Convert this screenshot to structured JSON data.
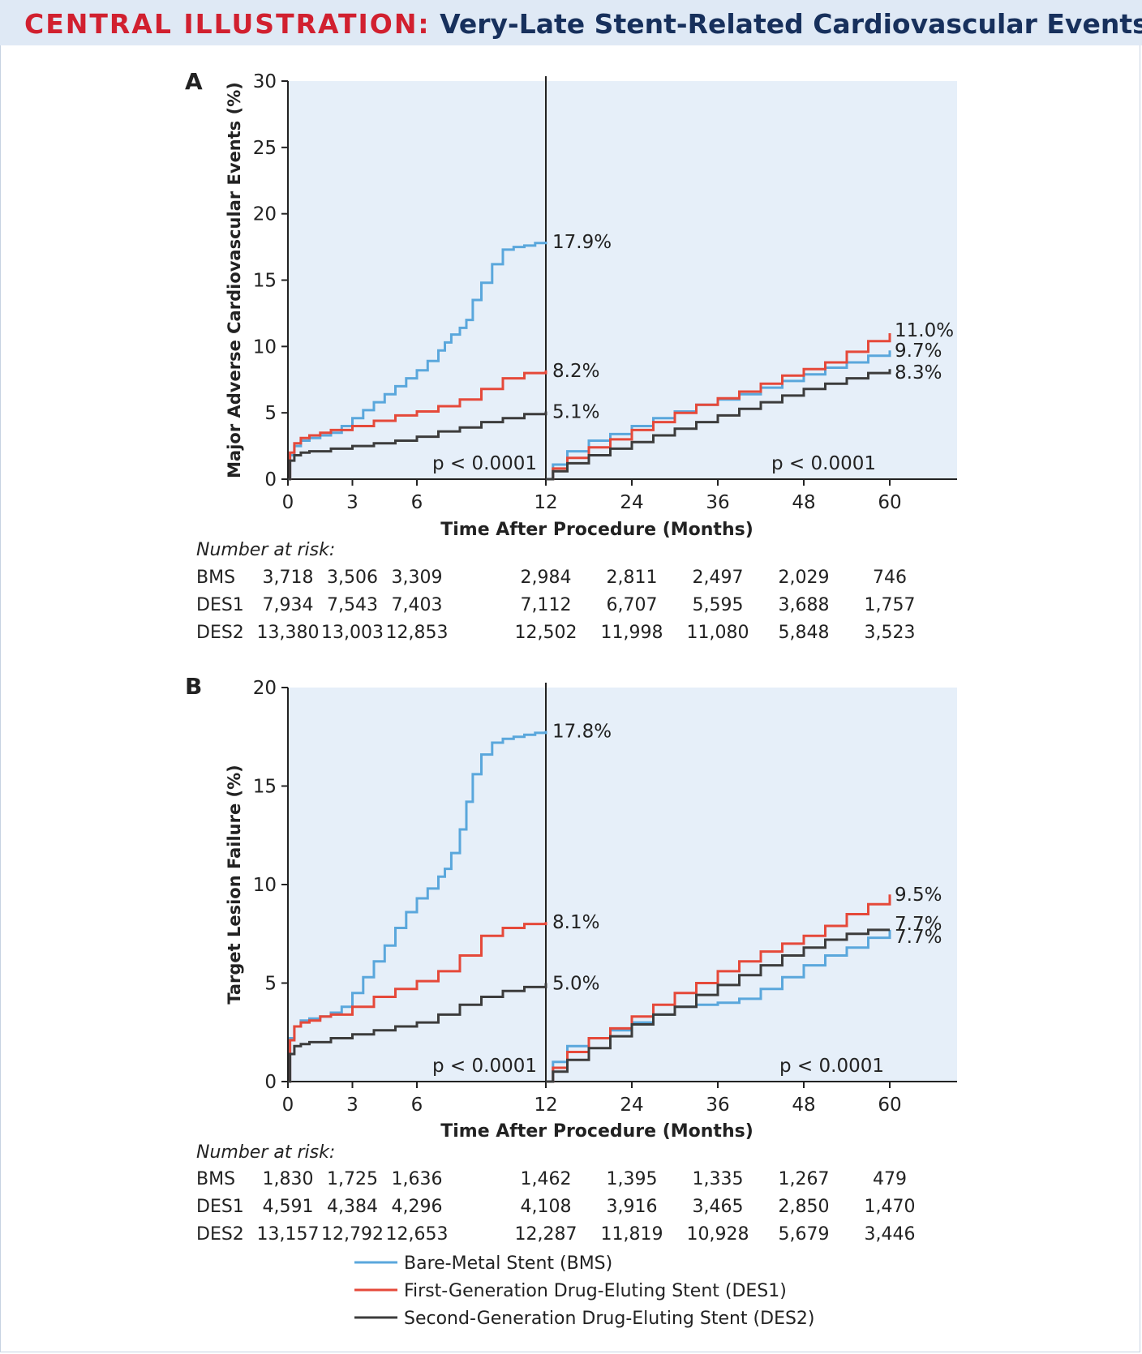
{
  "header": {
    "label": "CENTRAL ILLUSTRATION:",
    "title": "Very-Late Stent-Related Cardiovascular Events"
  },
  "colors": {
    "bms": "#5aa7dc",
    "des1": "#e5493a",
    "des2": "#3c3c3c",
    "plot_bg": "#e6eff9",
    "header_bg": "#dfe9f5"
  },
  "chart_data": [
    {
      "type": "line",
      "panel": "A",
      "ylabel": "Major Adverse Cardiovascular Events (%)",
      "xlabel": "Time After Procedure (Months)",
      "ylim": [
        0,
        30
      ],
      "yticks": [
        "0",
        "5",
        "10",
        "15",
        "20",
        "25",
        "30"
      ],
      "xticks": [
        "0",
        "3",
        "6",
        "12",
        "24",
        "36",
        "48",
        "60"
      ],
      "p_values": [
        "p < 0.0001",
        "p < 0.0001"
      ],
      "series": [
        {
          "name": "BMS",
          "color": "#5aa7dc",
          "first_year": {
            "x": [
              0,
              0.1,
              0.3,
              0.6,
              1,
              1.5,
              2,
              2.5,
              3,
              3.5,
              4,
              4.5,
              5,
              5.5,
              6,
              6.5,
              7,
              7.3,
              7.6,
              8,
              8.3,
              8.6,
              9,
              9.5,
              10,
              10.5,
              11,
              11.5,
              12
            ],
            "y": [
              0,
              1.8,
              2.5,
              2.9,
              3.1,
              3.3,
              3.5,
              4.0,
              4.6,
              5.2,
              5.8,
              6.4,
              7.0,
              7.6,
              8.2,
              8.9,
              9.7,
              10.3,
              10.9,
              11.4,
              12.0,
              13.5,
              14.8,
              16.2,
              17.3,
              17.5,
              17.6,
              17.8,
              17.9
            ],
            "end_label": "17.9%"
          },
          "after": {
            "x": [
              12,
              13,
              15,
              18,
              21,
              24,
              27,
              30,
              33,
              36,
              39,
              42,
              45,
              48,
              51,
              54,
              57,
              60
            ],
            "y": [
              0,
              1.1,
              2.1,
              2.9,
              3.4,
              4.0,
              4.6,
              5.1,
              5.6,
              6.0,
              6.4,
              6.9,
              7.4,
              7.9,
              8.4,
              8.8,
              9.3,
              9.7
            ],
            "end_label": "9.7%"
          }
        },
        {
          "name": "DES1",
          "color": "#e5493a",
          "first_year": {
            "x": [
              0,
              0.1,
              0.3,
              0.6,
              1,
              1.5,
              2,
              3,
              4,
              5,
              6,
              7,
              8,
              9,
              10,
              11,
              12
            ],
            "y": [
              0,
              2.0,
              2.7,
              3.1,
              3.3,
              3.5,
              3.7,
              4.0,
              4.4,
              4.8,
              5.1,
              5.5,
              6.0,
              6.8,
              7.6,
              8.0,
              8.2
            ],
            "end_label": "8.2%"
          },
          "after": {
            "x": [
              12,
              13,
              15,
              18,
              21,
              24,
              27,
              30,
              33,
              36,
              39,
              42,
              45,
              48,
              51,
              54,
              57,
              60
            ],
            "y": [
              0,
              0.8,
              1.6,
              2.4,
              3.0,
              3.7,
              4.3,
              5.0,
              5.6,
              6.1,
              6.6,
              7.2,
              7.8,
              8.3,
              8.8,
              9.6,
              10.4,
              11.0
            ],
            "end_label": "11.0%"
          }
        },
        {
          "name": "DES2",
          "color": "#3c3c3c",
          "first_year": {
            "x": [
              0,
              0.1,
              0.3,
              0.6,
              1,
              2,
              3,
              4,
              5,
              6,
              7,
              8,
              9,
              10,
              11,
              12
            ],
            "y": [
              0,
              1.4,
              1.8,
              2.0,
              2.1,
              2.3,
              2.5,
              2.7,
              2.9,
              3.2,
              3.6,
              3.9,
              4.3,
              4.6,
              4.9,
              5.1
            ],
            "end_label": "5.1%"
          },
          "after": {
            "x": [
              12,
              13,
              15,
              18,
              21,
              24,
              27,
              30,
              33,
              36,
              39,
              42,
              45,
              48,
              51,
              54,
              57,
              60
            ],
            "y": [
              0,
              0.6,
              1.2,
              1.8,
              2.3,
              2.8,
              3.3,
              3.8,
              4.3,
              4.8,
              5.3,
              5.8,
              6.3,
              6.8,
              7.2,
              7.6,
              8.0,
              8.3
            ],
            "end_label": "8.3%"
          }
        }
      ],
      "at_risk": {
        "label": "Number at risk:",
        "rows": [
          {
            "name": "BMS",
            "values": [
              "3,718",
              "3,506",
              "3,309",
              "2,984",
              "2,811",
              "2,497",
              "2,029",
              "746"
            ]
          },
          {
            "name": "DES1",
            "values": [
              "7,934",
              "7,543",
              "7,403",
              "7,112",
              "6,707",
              "5,595",
              "3,688",
              "1,757"
            ]
          },
          {
            "name": "DES2",
            "values": [
              "13,380",
              "13,003",
              "12,853",
              "12,502",
              "11,998",
              "11,080",
              "5,848",
              "3,523"
            ]
          }
        ]
      }
    },
    {
      "type": "line",
      "panel": "B",
      "ylabel": "Target Lesion Failure (%)",
      "xlabel": "Time After Procedure (Months)",
      "ylim": [
        0,
        20
      ],
      "yticks": [
        "0",
        "5",
        "10",
        "15",
        "20"
      ],
      "xticks": [
        "0",
        "3",
        "6",
        "12",
        "24",
        "36",
        "48",
        "60"
      ],
      "p_values": [
        "p < 0.0001",
        "p < 0.0001"
      ],
      "series": [
        {
          "name": "BMS",
          "color": "#5aa7dc",
          "first_year": {
            "x": [
              0,
              0.1,
              0.3,
              0.6,
              1,
              1.5,
              2,
              2.5,
              3,
              3.5,
              4,
              4.5,
              5,
              5.5,
              6,
              6.5,
              7,
              7.3,
              7.6,
              8,
              8.3,
              8.6,
              9,
              9.5,
              10,
              10.5,
              11,
              11.5,
              12
            ],
            "y": [
              0,
              2.2,
              2.8,
              3.1,
              3.2,
              3.3,
              3.5,
              3.8,
              4.5,
              5.3,
              6.1,
              6.9,
              7.8,
              8.6,
              9.3,
              9.8,
              10.4,
              10.8,
              11.6,
              12.8,
              14.2,
              15.6,
              16.6,
              17.2,
              17.4,
              17.5,
              17.6,
              17.7,
              17.8
            ],
            "end_label": "17.8%"
          },
          "after": {
            "x": [
              12,
              13,
              15,
              18,
              21,
              24,
              27,
              30,
              33,
              36,
              39,
              42,
              45,
              48,
              51,
              54,
              57,
              60
            ],
            "y": [
              0,
              1.0,
              1.8,
              2.2,
              2.6,
              3.0,
              3.4,
              3.8,
              3.9,
              4.0,
              4.2,
              4.7,
              5.3,
              5.9,
              6.4,
              6.8,
              7.3,
              7.7
            ],
            "end_label": "7.7%"
          }
        },
        {
          "name": "DES1",
          "color": "#e5493a",
          "first_year": {
            "x": [
              0,
              0.1,
              0.3,
              0.6,
              1,
              1.5,
              2,
              3,
              4,
              5,
              6,
              7,
              8,
              9,
              10,
              11,
              12
            ],
            "y": [
              0,
              2.1,
              2.8,
              3.0,
              3.1,
              3.3,
              3.4,
              3.8,
              4.3,
              4.7,
              5.1,
              5.6,
              6.4,
              7.4,
              7.8,
              8.0,
              8.1
            ],
            "end_label": "8.1%"
          },
          "after": {
            "x": [
              12,
              13,
              15,
              18,
              21,
              24,
              27,
              30,
              33,
              36,
              39,
              42,
              45,
              48,
              51,
              54,
              57,
              60
            ],
            "y": [
              0,
              0.7,
              1.5,
              2.2,
              2.7,
              3.3,
              3.9,
              4.5,
              5.0,
              5.6,
              6.1,
              6.6,
              7.0,
              7.4,
              7.9,
              8.5,
              9.0,
              9.5
            ],
            "end_label": "9.5%"
          }
        },
        {
          "name": "DES2",
          "color": "#3c3c3c",
          "first_year": {
            "x": [
              0,
              0.1,
              0.3,
              0.6,
              1,
              2,
              3,
              4,
              5,
              6,
              7,
              8,
              9,
              10,
              11,
              12
            ],
            "y": [
              0,
              1.4,
              1.8,
              1.9,
              2.0,
              2.2,
              2.4,
              2.6,
              2.8,
              3.0,
              3.4,
              3.9,
              4.3,
              4.6,
              4.8,
              5.0
            ],
            "end_label": "5.0%"
          },
          "after": {
            "x": [
              12,
              13,
              15,
              18,
              21,
              24,
              27,
              30,
              33,
              36,
              39,
              42,
              45,
              48,
              51,
              54,
              57,
              60
            ],
            "y": [
              0,
              0.5,
              1.1,
              1.7,
              2.3,
              2.9,
              3.4,
              3.8,
              4.4,
              4.9,
              5.4,
              5.9,
              6.4,
              6.8,
              7.2,
              7.5,
              7.7,
              7.7
            ],
            "end_label": "7.7%"
          }
        }
      ],
      "at_risk": {
        "label": "Number at risk:",
        "rows": [
          {
            "name": "BMS",
            "values": [
              "1,830",
              "1,725",
              "1,636",
              "1,462",
              "1,395",
              "1,335",
              "1,267",
              "479"
            ]
          },
          {
            "name": "DES1",
            "values": [
              "4,591",
              "4,384",
              "4,296",
              "4,108",
              "3,916",
              "3,465",
              "2,850",
              "1,470"
            ]
          },
          {
            "name": "DES2",
            "values": [
              "13,157",
              "12,792",
              "12,653",
              "12,287",
              "11,819",
              "10,928",
              "5,679",
              "3,446"
            ]
          }
        ]
      }
    }
  ],
  "legend": [
    {
      "label": "Bare-Metal Stent (BMS)",
      "color": "#5aa7dc"
    },
    {
      "label": "First-Generation Drug-Eluting Stent (DES1)",
      "color": "#e5493a"
    },
    {
      "label": "Second-Generation Drug-Eluting Stent (DES2)",
      "color": "#3c3c3c"
    }
  ]
}
